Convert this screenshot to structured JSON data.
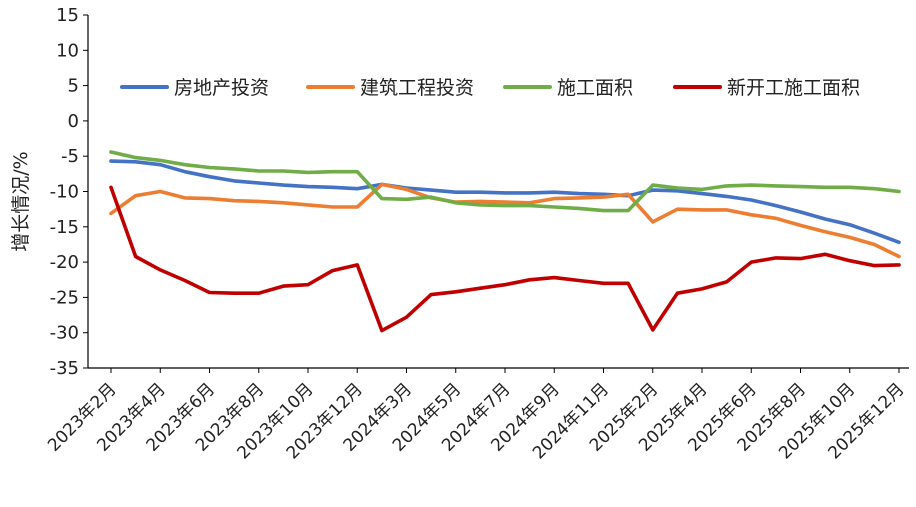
{
  "chart_data": {
    "type": "line",
    "title": "",
    "xlabel": "",
    "ylabel": "增长情况/%",
    "ylim": [
      -35,
      15
    ],
    "yticks": [
      15,
      10,
      5,
      0,
      -5,
      -10,
      -15,
      -20,
      -25,
      -30,
      -35
    ],
    "grid": false,
    "legend_position": "top",
    "x": [
      "2023年2月",
      "2023年3月",
      "2023年4月",
      "2023年5月",
      "2023年6月",
      "2023年7月",
      "2023年8月",
      "2023年9月",
      "2023年10月",
      "2023年11月",
      "2023年12月",
      "2024年2月",
      "2024年3月",
      "2024年4月",
      "2024年5月",
      "2024年6月",
      "2024年7月",
      "2024年8月",
      "2024年9月",
      "2024年10月",
      "2024年11月",
      "2024年12月",
      "2025年2月",
      "2025年3月",
      "2025年4月",
      "2025年5月",
      "2025年6月",
      "2025年7月",
      "2025年8月",
      "2025年9月",
      "2025年10月",
      "2025年11月",
      "2025年12月"
    ],
    "x_tick_labels": [
      "2023年2月",
      "2023年4月",
      "2023年6月",
      "2023年8月",
      "2023年10月",
      "2023年12月",
      "2024年3月",
      "2024年5月",
      "2024年7月",
      "2024年9月",
      "2024年11月",
      "2025年2月",
      "2025年4月",
      "2025年6月",
      "2025年8月",
      "2025年10月",
      "2025年12月"
    ],
    "series": [
      {
        "name": "房地产投资",
        "color": "#4472C4",
        "values": [
          -5.7,
          -5.8,
          -6.2,
          -7.2,
          -7.9,
          -8.5,
          -8.8,
          -9.1,
          -9.3,
          -9.4,
          -9.6,
          -9.0,
          -9.5,
          -9.8,
          -10.1,
          -10.1,
          -10.2,
          -10.2,
          -10.1,
          -10.3,
          -10.4,
          -10.6,
          -9.8,
          -9.9,
          -10.3,
          -10.7,
          -11.2,
          -12.0,
          -12.9,
          -13.9,
          -14.7,
          -15.9,
          -17.2
        ]
      },
      {
        "name": "建筑工程投资",
        "color": "#ED7D31",
        "values": [
          -13.1,
          -10.6,
          -10.0,
          -10.9,
          -11.0,
          -11.3,
          -11.4,
          -11.6,
          -11.9,
          -12.2,
          -12.2,
          -9.0,
          -9.7,
          -10.9,
          -11.5,
          -11.4,
          -11.5,
          -11.6,
          -11.0,
          -10.9,
          -10.8,
          -10.4,
          -14.3,
          -12.5,
          -12.6,
          -12.6,
          -13.3,
          -13.8,
          -14.8,
          -15.7,
          -16.5,
          -17.5,
          -19.2
        ]
      },
      {
        "name": "施工面积",
        "color": "#70AD47",
        "values": [
          -4.4,
          -5.2,
          -5.6,
          -6.2,
          -6.6,
          -6.8,
          -7.1,
          -7.1,
          -7.3,
          -7.2,
          -7.2,
          -11.0,
          -11.1,
          -10.8,
          -11.6,
          -11.9,
          -12.0,
          -12.0,
          -12.2,
          -12.4,
          -12.7,
          -12.7,
          -9.1,
          -9.5,
          -9.7,
          -9.2,
          -9.1,
          -9.2,
          -9.3,
          -9.4,
          -9.4,
          -9.6,
          -10.0
        ]
      },
      {
        "name": "新开工施工面积",
        "color": "#C00000",
        "values": [
          -9.4,
          -19.2,
          -21.1,
          -22.6,
          -24.3,
          -24.4,
          -24.4,
          -23.4,
          -23.2,
          -21.2,
          -20.4,
          -29.7,
          -27.8,
          -24.6,
          -24.2,
          -23.7,
          -23.2,
          -22.5,
          -22.2,
          -22.6,
          -23.0,
          -23.0,
          -29.6,
          -24.4,
          -23.8,
          -22.8,
          -20.0,
          -19.4,
          -19.5,
          -18.9,
          -19.8,
          -20.5,
          -20.4
        ]
      }
    ]
  }
}
